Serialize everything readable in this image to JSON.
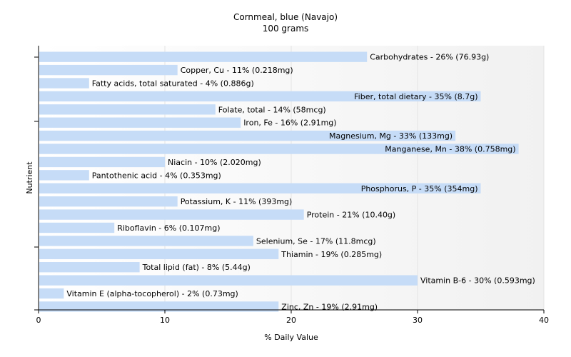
{
  "chart_data": {
    "type": "bar",
    "orientation": "horizontal",
    "title": "Cornmeal, blue (Navajo)",
    "subtitle": "100 grams",
    "xlabel": "% Daily Value",
    "ylabel": "Nutrient",
    "xlim": [
      0,
      40
    ],
    "xticks": [
      0,
      10,
      20,
      30,
      40
    ],
    "grid": true,
    "bar_color": "#c6dcf7",
    "categories": [
      "Carbohydrates",
      "Copper, Cu",
      "Fatty acids, total saturated",
      "Fiber, total dietary",
      "Folate, total",
      "Iron, Fe",
      "Magnesium, Mg",
      "Manganese, Mn",
      "Niacin",
      "Pantothenic acid",
      "Phosphorus, P",
      "Potassium, K",
      "Protein",
      "Riboflavin",
      "Selenium, Se",
      "Thiamin",
      "Total lipid (fat)",
      "Vitamin B-6",
      "Vitamin E (alpha-tocopherol)",
      "Zinc, Zn"
    ],
    "values": [
      26,
      11,
      4,
      35,
      14,
      16,
      33,
      38,
      10,
      4,
      35,
      11,
      21,
      6,
      17,
      19,
      8,
      30,
      2,
      19
    ],
    "labels": [
      "Carbohydrates - 26% (76.93g)",
      "Copper, Cu - 11% (0.218mg)",
      "Fatty acids, total saturated - 4% (0.886g)",
      "Fiber, total dietary - 35% (8.7g)",
      "Folate, total - 14% (58mcg)",
      "Iron, Fe - 16% (2.91mg)",
      "Magnesium, Mg - 33% (133mg)",
      "Manganese, Mn - 38% (0.758mg)",
      "Niacin - 10% (2.020mg)",
      "Pantothenic acid - 4% (0.353mg)",
      "Phosphorus, P - 35% (354mg)",
      "Potassium, K - 11% (393mg)",
      "Protein - 21% (10.40g)",
      "Riboflavin - 6% (0.107mg)",
      "Selenium, Se - 17% (11.8mcg)",
      "Thiamin - 19% (0.285mg)",
      "Total lipid (fat) - 8% (5.44g)",
      "Vitamin B-6 - 30% (0.593mg)",
      "Vitamin E (alpha-tocopherol) - 2% (0.73mg)",
      "Zinc, Zn - 19% (2.91mg)"
    ]
  }
}
